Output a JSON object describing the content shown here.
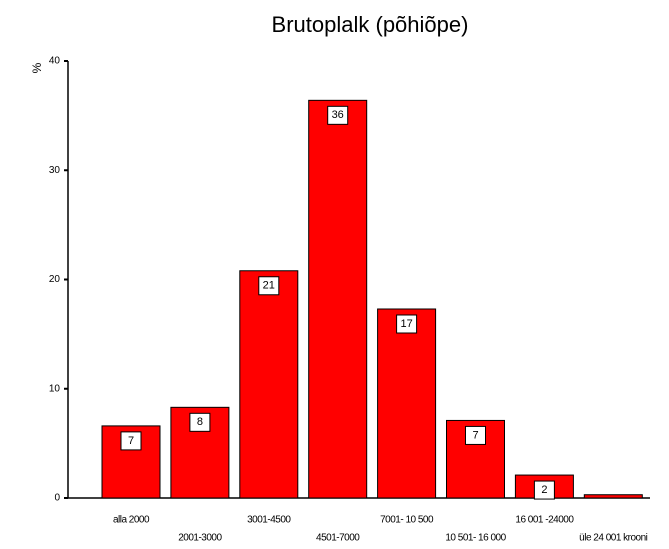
{
  "chart_data": {
    "type": "bar",
    "title": "Brutoplalk (põhiõpe)",
    "y_label": "%",
    "categories": [
      "alla 2000",
      "2001-3000",
      "3001-4500",
      "4501-7000",
      "7001- 10 500",
      "10 501- 16 000",
      "16 001 -24000",
      "üle 24 001 krooni"
    ],
    "values": [
      6.6,
      8.3,
      20.8,
      36.4,
      17.3,
      7.1,
      2.1,
      0.3
    ],
    "value_labels": [
      "7",
      "8",
      "21",
      "36",
      "17",
      "7",
      "2",
      null
    ],
    "color": "#ff0000",
    "ylim": [
      0,
      40
    ],
    "yticks": [
      0,
      10,
      20,
      30,
      40
    ],
    "grid": false
  }
}
